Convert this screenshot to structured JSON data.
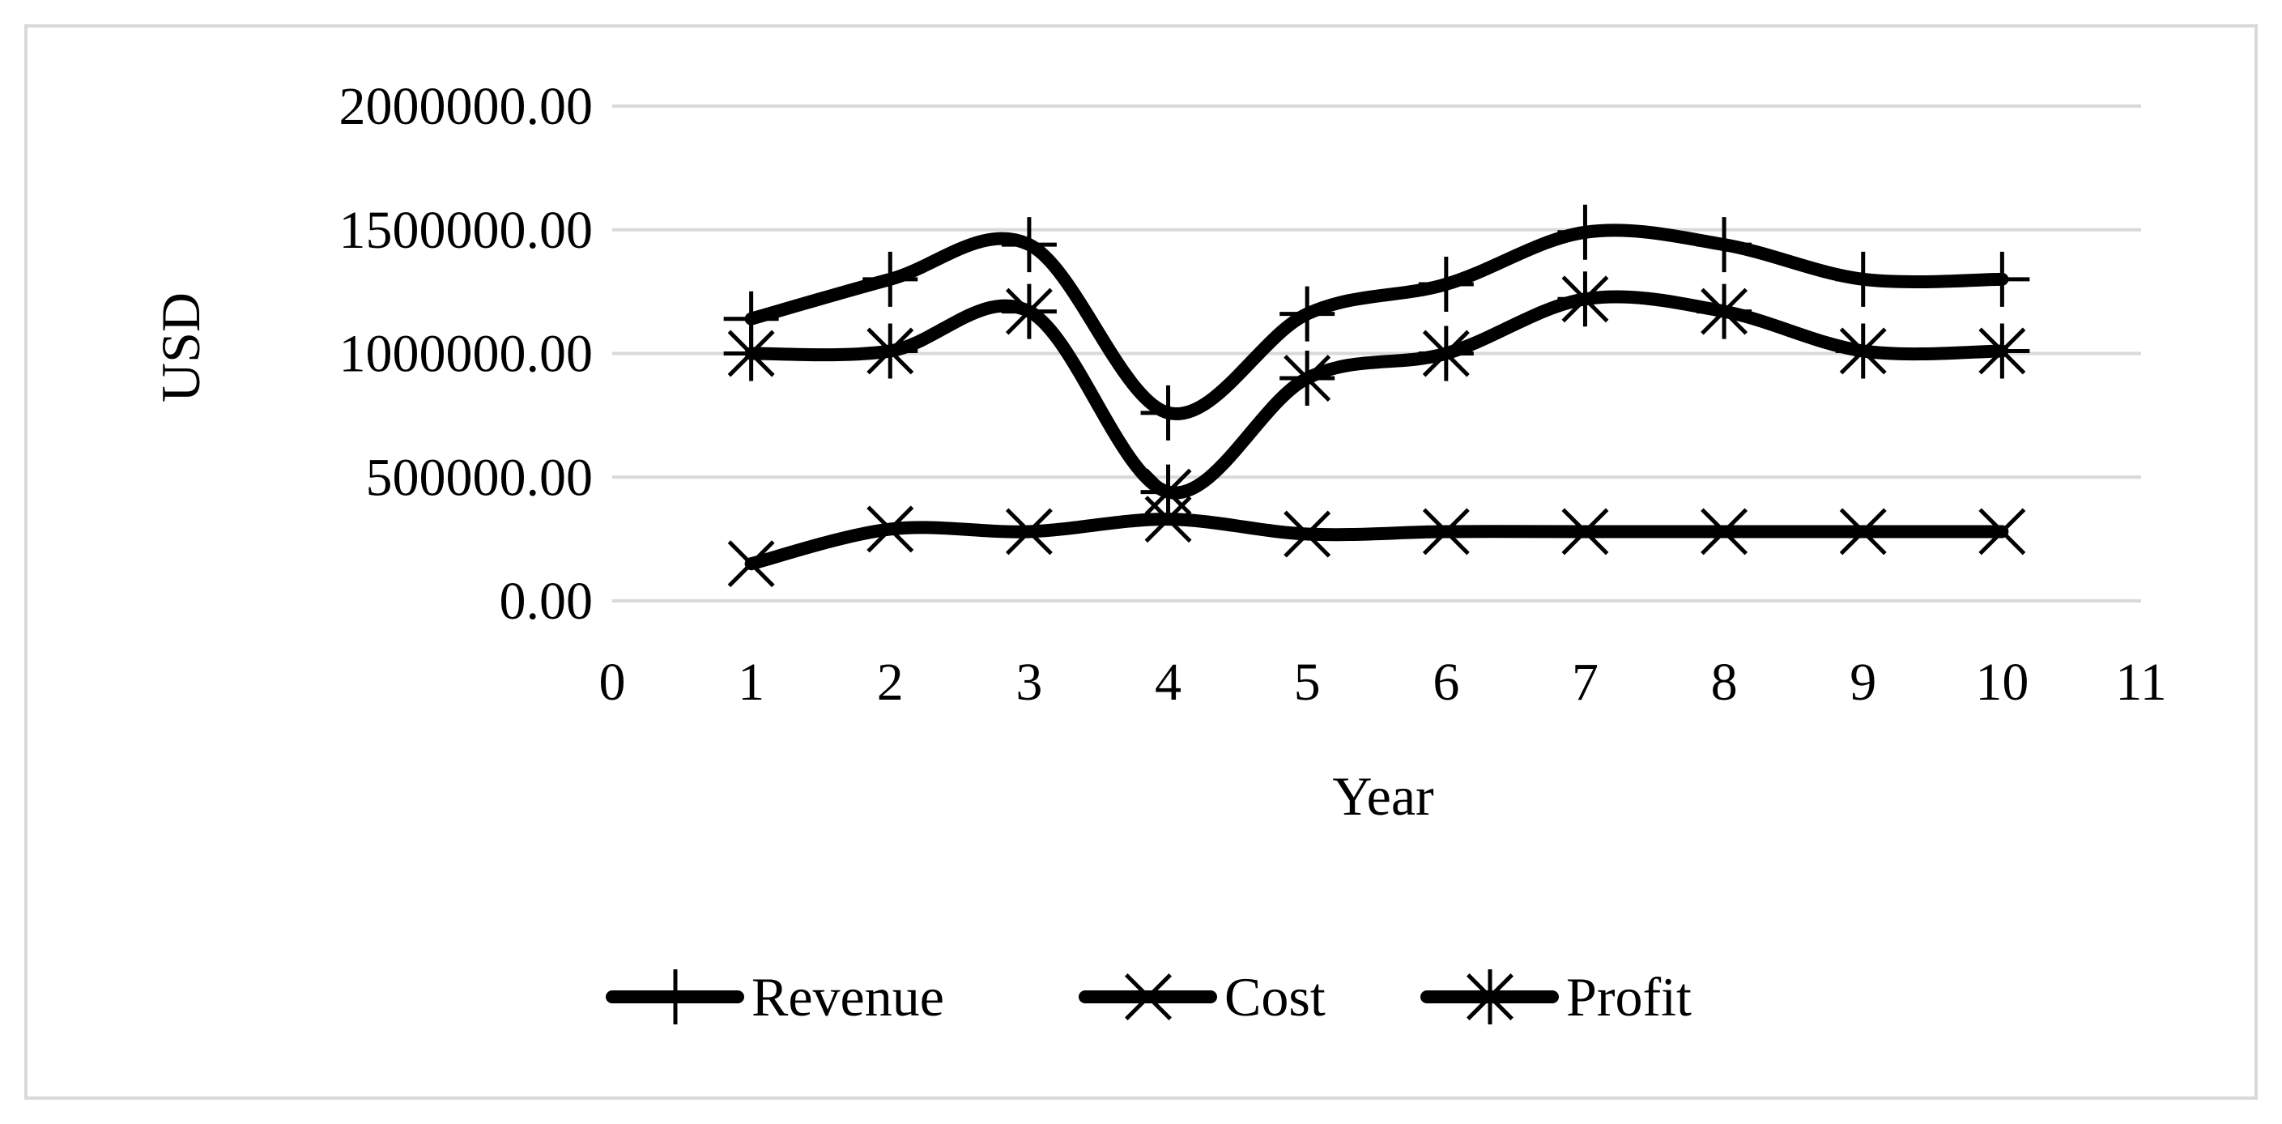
{
  "chart_data": {
    "type": "line",
    "title": "",
    "xlabel": "Year",
    "ylabel": "USD",
    "xlim": [
      0,
      11
    ],
    "ylim": [
      0,
      2000000
    ],
    "x_ticks": [
      "0",
      "1",
      "2",
      "3",
      "4",
      "5",
      "6",
      "7",
      "8",
      "9",
      "10",
      "11"
    ],
    "y_ticks": [
      "0.00",
      "500000.00",
      "1000000.00",
      "1500000.00",
      "2000000.00"
    ],
    "grid": true,
    "smoothed": true,
    "legend_position": "bottom",
    "line_color": "#000000",
    "x": [
      1,
      2,
      3,
      4,
      5,
      6,
      7,
      8,
      9,
      10
    ],
    "series": [
      {
        "name": "Revenue",
        "marker": "plus",
        "values": [
          1140000,
          1300000,
          1440000,
          760000,
          1160000,
          1280000,
          1490000,
          1440000,
          1300000,
          1300000
        ]
      },
      {
        "name": "Cost",
        "marker": "x",
        "values": [
          150000,
          290000,
          280000,
          330000,
          270000,
          280000,
          280000,
          280000,
          280000,
          280000
        ]
      },
      {
        "name": "Profit",
        "marker": "star",
        "values": [
          1000000,
          1010000,
          1170000,
          440000,
          900000,
          1000000,
          1220000,
          1170000,
          1010000,
          1010000
        ]
      }
    ]
  }
}
